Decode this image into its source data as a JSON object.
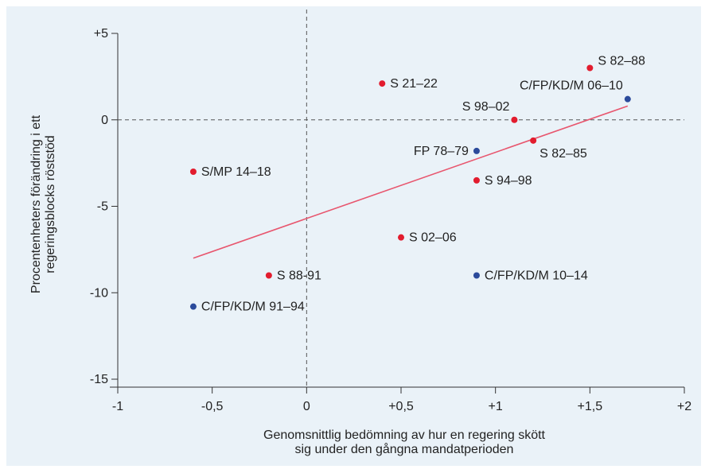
{
  "chart_data": {
    "type": "scatter",
    "xlabel_lines": [
      "Genomsnittlig bedömning av hur en regering skött",
      "sig under den gångna mandatperioden"
    ],
    "ylabel_lines": [
      "Procentenheters förändring i ett",
      "regeringsblocks röststöd"
    ],
    "xlim": [
      -1,
      2
    ],
    "ylim": [
      -15,
      5
    ],
    "x_ticks": [
      -1,
      -0.5,
      0,
      0.5,
      1,
      1.5,
      2
    ],
    "x_tick_labels": [
      "-1",
      "-0,5",
      "0",
      "+0,5",
      "+1",
      "+1,5",
      "+2"
    ],
    "y_ticks": [
      5,
      0,
      -5,
      -10,
      -15
    ],
    "y_tick_labels": [
      "+5",
      "0",
      "-5",
      "-10",
      "-15"
    ],
    "reference_lines": {
      "x": 0,
      "y": 0
    },
    "trendline": {
      "x": [
        -0.6,
        1.7
      ],
      "y": [
        -8.0,
        0.8
      ],
      "color": "#e8566e"
    },
    "points": [
      {
        "label": "S 82–88",
        "x": 1.5,
        "y": 3.0,
        "color": "#e21c2e",
        "label_pos": "right-up"
      },
      {
        "label": "C/FP/KD/M 06–10",
        "x": 1.7,
        "y": 1.2,
        "color": "#2b4a9b",
        "label_pos": "left-up"
      },
      {
        "label": "S 21–22",
        "x": 0.4,
        "y": 2.1,
        "color": "#e21c2e",
        "label_pos": "right"
      },
      {
        "label": "S 98–02",
        "x": 1.1,
        "y": 0.0,
        "color": "#e21c2e",
        "label_pos": "left-up"
      },
      {
        "label": "FP 78–79",
        "x": 0.9,
        "y": -1.8,
        "color": "#2b4a9b",
        "label_pos": "left"
      },
      {
        "label": "S 82–85",
        "x": 1.2,
        "y": -1.2,
        "color": "#e21c2e",
        "label_pos": "right-down"
      },
      {
        "label": "S/MP 14–18",
        "x": -0.6,
        "y": -3.0,
        "color": "#e21c2e",
        "label_pos": "right"
      },
      {
        "label": "S 94–98",
        "x": 0.9,
        "y": -3.5,
        "color": "#e21c2e",
        "label_pos": "right"
      },
      {
        "label": "S 02–06",
        "x": 0.5,
        "y": -6.8,
        "color": "#e21c2e",
        "label_pos": "right"
      },
      {
        "label": "S 88-91",
        "x": -0.2,
        "y": -9.0,
        "color": "#e21c2e",
        "label_pos": "right"
      },
      {
        "label": "C/FP/KD/M 10–14",
        "x": 0.9,
        "y": -9.0,
        "color": "#2b4a9b",
        "label_pos": "right"
      },
      {
        "label": "C/FP/KD/M 91–94",
        "x": -0.6,
        "y": -10.8,
        "color": "#2b4a9b",
        "label_pos": "right"
      }
    ],
    "grid": false,
    "legend": "none"
  }
}
